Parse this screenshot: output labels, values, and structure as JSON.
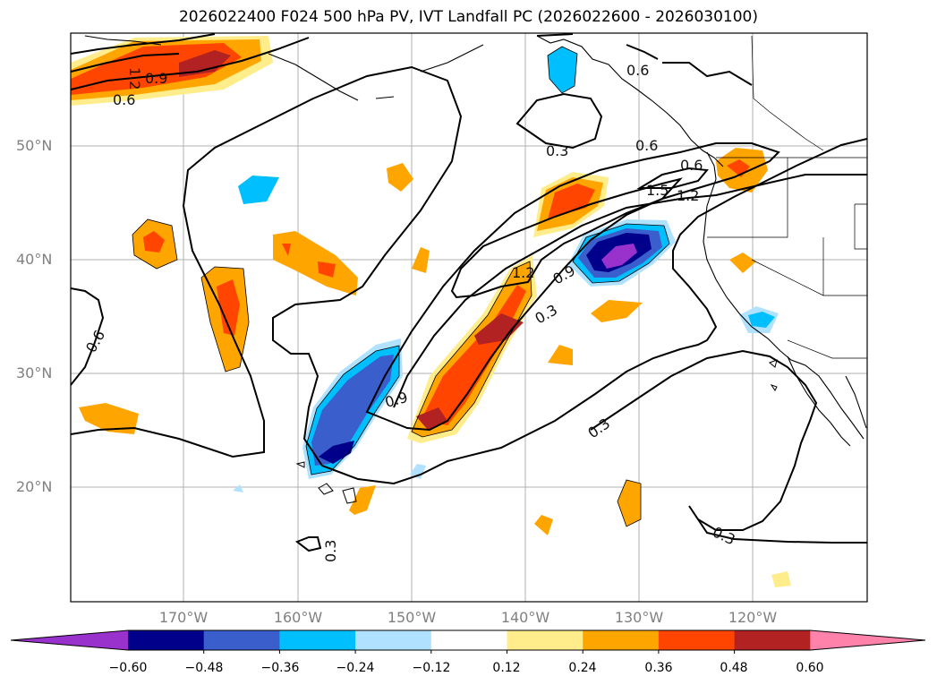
{
  "title": "2026022400 F024 500 hPa PV, IVT Landfall PC (2026022600 - 2026030100)",
  "latitude_labels": [
    "50°N",
    "40°N",
    "30°N",
    "20°N"
  ],
  "longitude_labels": [
    "170°W",
    "160°W",
    "150°W",
    "140°W",
    "130°W",
    "120°W"
  ],
  "contour_labels": [
    "1.2",
    "0.9",
    "0.6",
    "0.6",
    "0.6",
    "0.3",
    "0.6",
    "1.5",
    "1.2",
    "1.2",
    "0.9",
    "0.3",
    "0.9",
    "0.3",
    "0.3",
    "0.3",
    "0.6"
  ],
  "colorbar": {
    "colors": [
      "#9932CC",
      "#00008B",
      "#3A5FCD",
      "#00BFFF",
      "#B0E2FF",
      "#FFFFFF",
      "#FFEC8B",
      "#FFA500",
      "#FF4500",
      "#B22222",
      "#FF82AB"
    ],
    "tick_labels": [
      "−0.60",
      "−0.48",
      "−0.36",
      "−0.24",
      "−0.12",
      "0.12",
      "0.24",
      "0.36",
      "0.48",
      "0.60"
    ]
  }
}
